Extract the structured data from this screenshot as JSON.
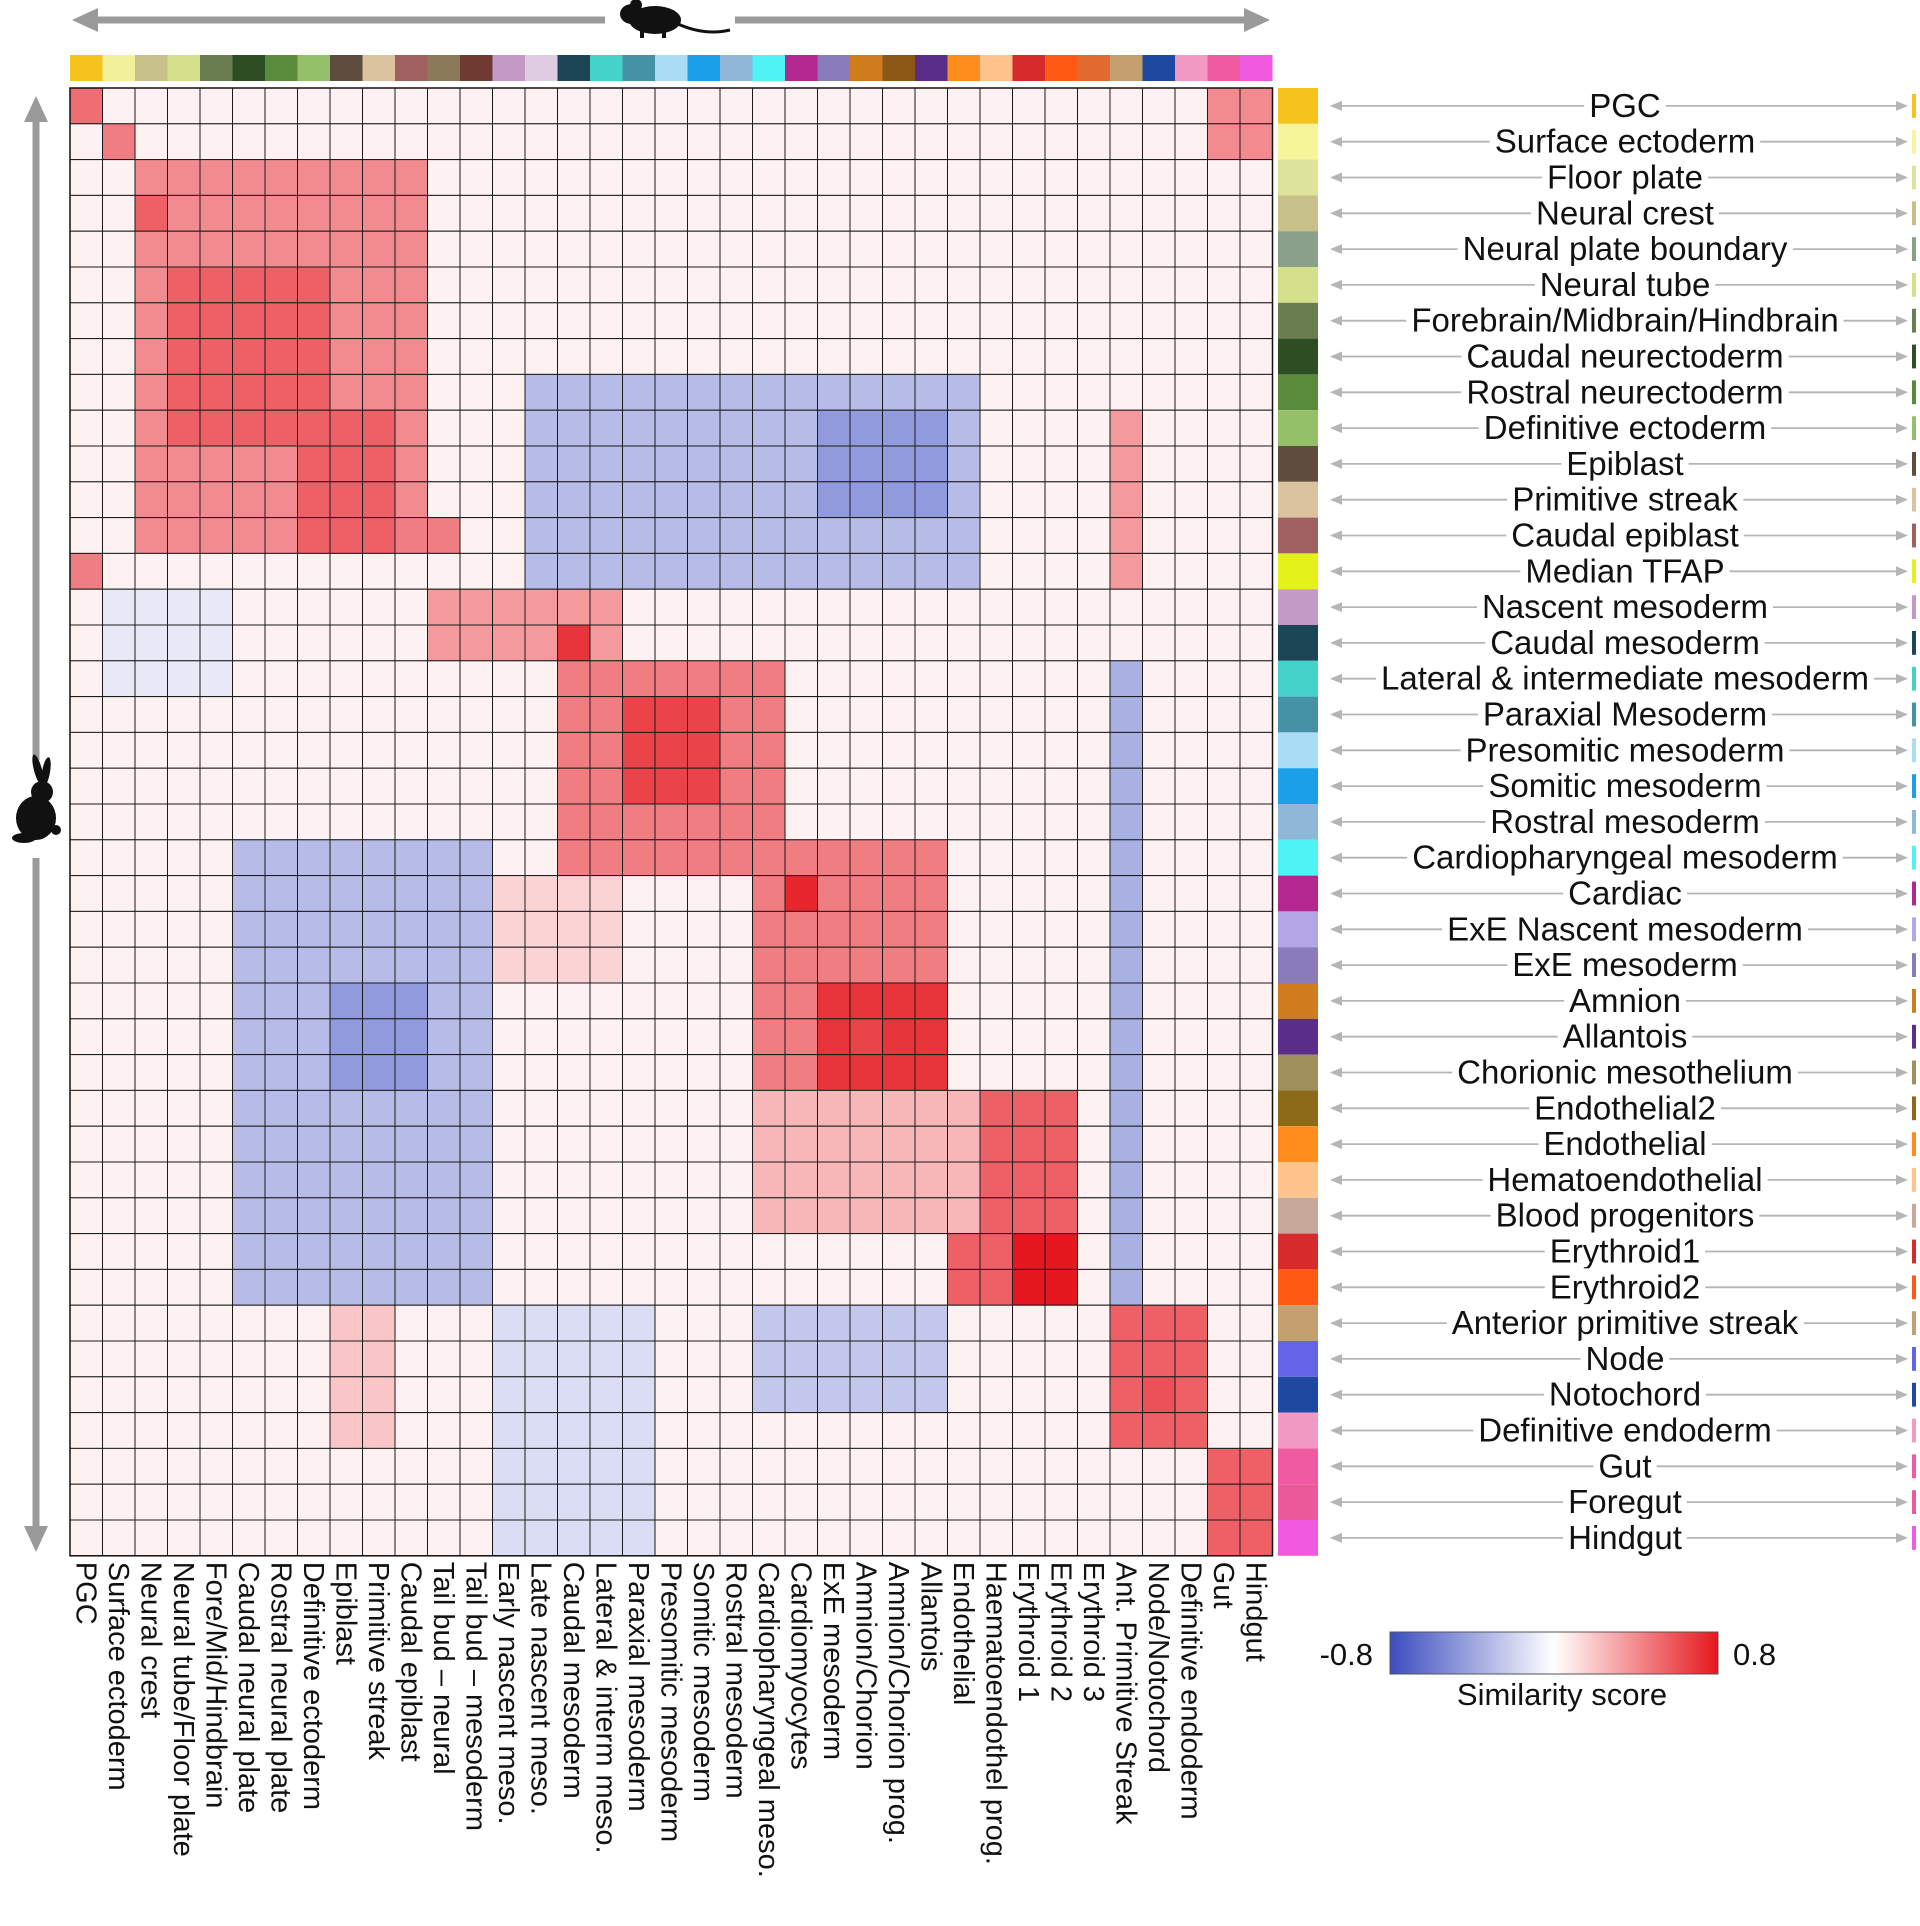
{
  "chart_data": {
    "type": "heatmap",
    "title": "",
    "colorbar": {
      "min_label": "-0.8",
      "max_label": "0.8",
      "title": "Similarity score",
      "range": [
        -0.8,
        0.8
      ],
      "colors": {
        "negative": "#3b4cc0",
        "zero": "#ffffff",
        "positive": "#e5171f"
      }
    },
    "axes": {
      "top": "mouse cell types",
      "left": "rabbit cell types"
    },
    "icons": {
      "top": "mouse-icon",
      "left": "rabbit-icon"
    },
    "columns": [
      "PGC",
      "Surface ectoderm",
      "Neural crest",
      "Neural tube/Floor plate",
      "Fore/Mid/Hindbrain",
      "Caudal neural plate",
      "Rostral neural plate",
      "Definitive ectoderm",
      "Epiblast",
      "Primitive streak",
      "Caudal epiblast",
      "Tail bud – neural",
      "Tail bud – mesoderm",
      "Early nascent meso.",
      "Late nascent meso.",
      "Caudal mesoderm",
      "Lateral & interm meso.",
      "Paraxial mesoderm",
      "Presomitic mesoderm",
      "Somitic mesoderm",
      "Rostral mesoderm",
      "Cardiopharyngeal meso.",
      "Cardiomyocytes",
      "ExE mesoderm",
      "Amnion/Chorion",
      "Amnion/Chorion prog.",
      "Allantois",
      "Endothelial",
      "Haematoendothel prog.",
      "Erythroid 1",
      "Erythroid 2",
      "Erythroid 3",
      "Ant. Primitive Streak",
      "Node/Notochord",
      "Definitive endoderm",
      "Gut",
      "Hindgut"
    ],
    "column_colors": [
      "#f6c21c",
      "#f2f09a",
      "#c8c089",
      "#d4e08a",
      "#6a7d4f",
      "#2f4d23",
      "#5a8a3c",
      "#94c06a",
      "#5e4d3f",
      "#dcc3a0",
      "#a06060",
      "#8b7a5a",
      "#6e3a32",
      "#c39ac6",
      "#e0cce2",
      "#1c4656",
      "#43d3c8",
      "#4592a6",
      "#aadcf5",
      "#1b9fe6",
      "#8fb8d6",
      "#4ff2f5",
      "#b4278f",
      "#8a7bbd",
      "#cf7d1c",
      "#8d5716",
      "#5a2d8a",
      "#ff8d1e",
      "#ffc48c",
      "#d72a2a",
      "#ff5a14",
      "#e06a30",
      "#c4a070",
      "#1f48a0",
      "#f29ac4",
      "#f05aa0",
      "#f05ae0"
    ],
    "rows": [
      "PGC",
      "Surface ectoderm",
      "Floor plate",
      "Neural crest",
      "Neural plate boundary",
      "Neural tube",
      "Forebrain/Midbrain/Hindbrain",
      "Caudal neurectoderm",
      "Rostral neurectoderm",
      "Definitive ectoderm",
      "Epiblast",
      "Primitive streak",
      "Caudal epiblast",
      "Median TFAP",
      "Nascent mesoderm",
      "Caudal mesoderm",
      "Lateral & intermediate mesoderm",
      "Paraxial Mesoderm",
      "Presomitic mesoderm",
      "Somitic mesoderm",
      "Rostral mesoderm",
      "Cardiopharyngeal mesoderm",
      "Cardiac",
      "ExE Nascent mesoderm",
      "ExE mesoderm",
      "Amnion",
      "Allantois",
      "Chorionic mesothelium",
      "Endothelial2",
      "Endothelial",
      "Hematoendothelial",
      "Blood progenitors",
      "Erythroid1",
      "Erythroid2",
      "Anterior primitive streak",
      "Node",
      "Notochord",
      "Definitive endoderm",
      "Gut",
      "Foregut",
      "Hindgut"
    ],
    "row_colors": [
      "#f6c21c",
      "#f7f59a",
      "#dde39a",
      "#c8c089",
      "#8aa088",
      "#d4e08a",
      "#6a7d4f",
      "#2f4d23",
      "#5a8a3c",
      "#94c06a",
      "#5e4d3f",
      "#dcc3a0",
      "#a06060",
      "#e3f21a",
      "#c39ac6",
      "#1c4656",
      "#43d3c8",
      "#4592a6",
      "#aadcf5",
      "#1b9fe6",
      "#8fb8d6",
      "#4ff2f5",
      "#b4278f",
      "#b3a6e6",
      "#8a7bbd",
      "#cf7d1c",
      "#5a2d8a",
      "#a0905e",
      "#8d6a1a",
      "#ff8d1e",
      "#ffc48c",
      "#c8a89a",
      "#d72a2a",
      "#ff5a14",
      "#c4a070",
      "#6464e8",
      "#1f48a0",
      "#f29ac4",
      "#f05aa0",
      "#ea5a9a",
      "#f05ae0"
    ],
    "values_note": "Similarity scores in [-0.8, 0.8], estimated from cell colour; rows = rabbit cell types, columns = mouse cell types",
    "values": []
  }
}
